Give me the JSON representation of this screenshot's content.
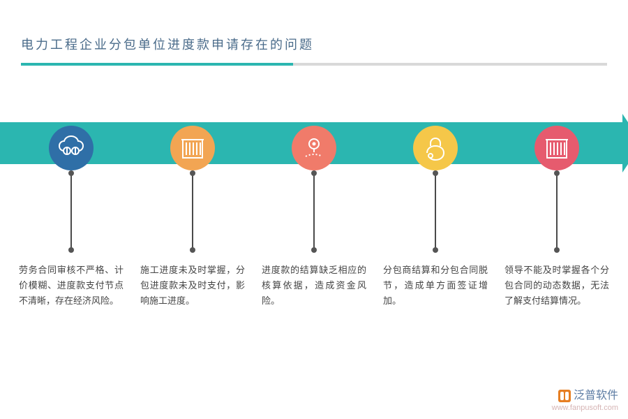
{
  "title": {
    "text": "电力工程企业分包单位进度款申请存在的问题",
    "color": "#4a6b8a",
    "fontsize": 18
  },
  "underline": {
    "accent_color": "#2bb6b0",
    "accent_width": 390,
    "base_color": "#d9d9d9"
  },
  "arrow": {
    "color": "#2bb6b0"
  },
  "stem_color": "#4a4a4a",
  "items": [
    {
      "circle_color": "#2f6fa7",
      "icon": "cloud-swirl",
      "desc": "劳务合同审核不严格、计价模糊、进度款支付节点不清晰，存在经济风险。"
    },
    {
      "circle_color": "#f2a553",
      "icon": "bars",
      "desc": "施工进度未及时掌握，分包进度款未及时支付，影响施工进度。"
    },
    {
      "circle_color": "#f07b6a",
      "icon": "pin-path",
      "desc": "进度款的结算缺乏相应的核算依据，造成资金风险。"
    },
    {
      "circle_color": "#f5c749",
      "icon": "lock-swirl",
      "desc": "分包商结算和分包合同脱节，造成单方面签证增加。"
    },
    {
      "circle_color": "#e65b6e",
      "icon": "bars",
      "desc": "领导不能及时掌握各个分包合同的动态数据，无法了解支付结算情况。"
    }
  ],
  "icon_stroke": "#ffffff",
  "watermark": {
    "name": "泛普软件",
    "url": "www.fanpusoft.com"
  }
}
